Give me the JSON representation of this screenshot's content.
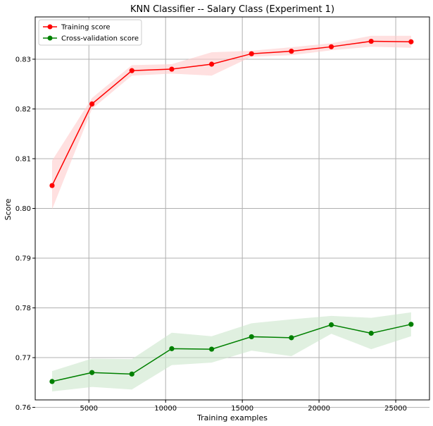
{
  "chart_data": {
    "type": "line",
    "title": "KNN Classifier -- Salary Class (Experiment 1)",
    "xlabel": "Training examples",
    "ylabel": "Score",
    "xlim": [
      1500,
      27200
    ],
    "ylim": [
      0.7615,
      0.8385
    ],
    "xticks": [
      5000,
      10000,
      15000,
      20000,
      25000
    ],
    "yticks": [
      0.76,
      0.77,
      0.78,
      0.79,
      0.8,
      0.81,
      0.82,
      0.83
    ],
    "ytick_labels": [
      "0.76",
      "0.77",
      "0.78",
      "0.79",
      "0.80",
      "0.81",
      "0.82",
      "0.83"
    ],
    "grid": true,
    "legend_position": "top-left",
    "x": [
      2600,
      5200,
      7800,
      10400,
      13000,
      15600,
      18200,
      20800,
      23400,
      26000
    ],
    "series": [
      {
        "name": "Training score",
        "color": "#ff0000",
        "band_color": "#ffcccc",
        "values": [
          0.8046,
          0.821,
          0.8277,
          0.828,
          0.829,
          0.8311,
          0.8316,
          0.8325,
          0.8336,
          0.8335
        ],
        "lower": [
          0.7998,
          0.82,
          0.8267,
          0.8271,
          0.8267,
          0.8305,
          0.8308,
          0.8318,
          0.8325,
          0.8323
        ],
        "upper": [
          0.8096,
          0.8222,
          0.8288,
          0.829,
          0.8314,
          0.8317,
          0.8324,
          0.8332,
          0.8347,
          0.8347
        ]
      },
      {
        "name": "Cross-validation score",
        "color": "#008000",
        "band_color": "#cce6cc",
        "values": [
          0.7652,
          0.767,
          0.7667,
          0.7718,
          0.7717,
          0.7742,
          0.774,
          0.7766,
          0.7749,
          0.7767
        ],
        "lower": [
          0.7632,
          0.7641,
          0.7636,
          0.7685,
          0.769,
          0.7714,
          0.7703,
          0.7748,
          0.7717,
          0.7743
        ],
        "upper": [
          0.7673,
          0.7698,
          0.7697,
          0.775,
          0.7743,
          0.7769,
          0.7777,
          0.7784,
          0.778,
          0.7791
        ]
      }
    ]
  }
}
